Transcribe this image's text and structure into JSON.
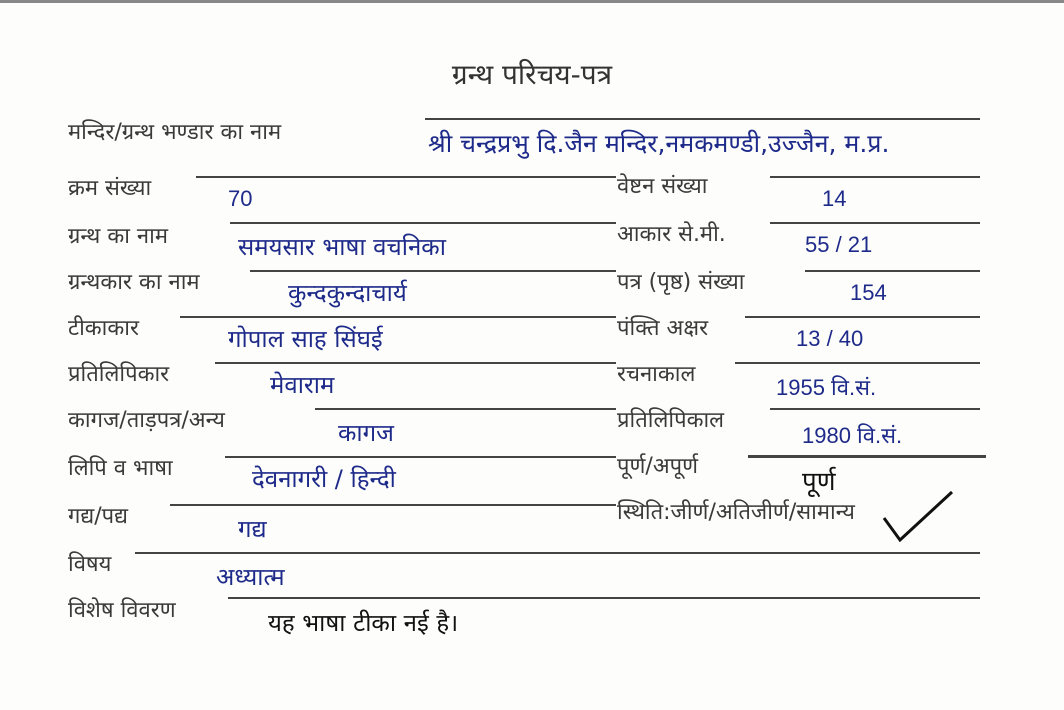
{
  "title": "ग्रन्थ परिचय-पत्र",
  "fields": {
    "bhandar": {
      "label": "मन्दिर/ग्रन्थ भण्डार का नाम",
      "value": "श्री चन्द्रप्रभु दि.जैन मन्दिर,नमकमण्डी,उज्जैन, म.प्र."
    },
    "kram": {
      "label": "क्रम संख्या",
      "value": "70"
    },
    "veshtan": {
      "label": "वेष्टन संख्या",
      "value": "14"
    },
    "granth": {
      "label": "ग्रन्थ का नाम",
      "value": "समयसार भाषा वचनिका"
    },
    "aakar": {
      "label": "आकार से.मी.",
      "value": "55 / 21"
    },
    "granthkar": {
      "label": "ग्रन्थकार का नाम",
      "value": "कुन्दकुन्दाचार्य"
    },
    "patra": {
      "label": "पत्र (पृष्ठ) संख्या",
      "value": "154"
    },
    "tikakar": {
      "label": "टीकाकार",
      "value": "गोपाल साह सिंघई"
    },
    "pankti": {
      "label": "पंक्ति अक्षर",
      "value": "13 / 40"
    },
    "pratilipikar": {
      "label": "प्रतिलिपिकार",
      "value": "मेवाराम"
    },
    "rachnakal": {
      "label": "रचनाकाल",
      "value": "1955 वि.सं."
    },
    "kagaj": {
      "label": "कागज/ताड़पत्र/अन्य",
      "value": "कागज"
    },
    "pratilipikal": {
      "label": "प्रतिलिपिकाल",
      "value": "1980 वि.सं."
    },
    "lipi": {
      "label": "लिपि व भाषा",
      "value": "देवनागरी / हिन्दी"
    },
    "purna": {
      "label": "पूर्ण/अपूर्ण",
      "value": "पूर्ण"
    },
    "gadya": {
      "label": "गद्य/पद्य",
      "value": "गद्य"
    },
    "sthiti": {
      "label": "स्थिति:जीर्ण/अतिजीर्ण/सामान्य",
      "checked": "सामान्य"
    },
    "vishay": {
      "label": "विषय",
      "value": "अध्यात्म"
    },
    "vivaran": {
      "label": "विशेष विवरण",
      "value": "यह भाषा टीका नई है।"
    }
  },
  "colors": {
    "ink": "#1e2a8a",
    "print": "#3a3a3a"
  }
}
